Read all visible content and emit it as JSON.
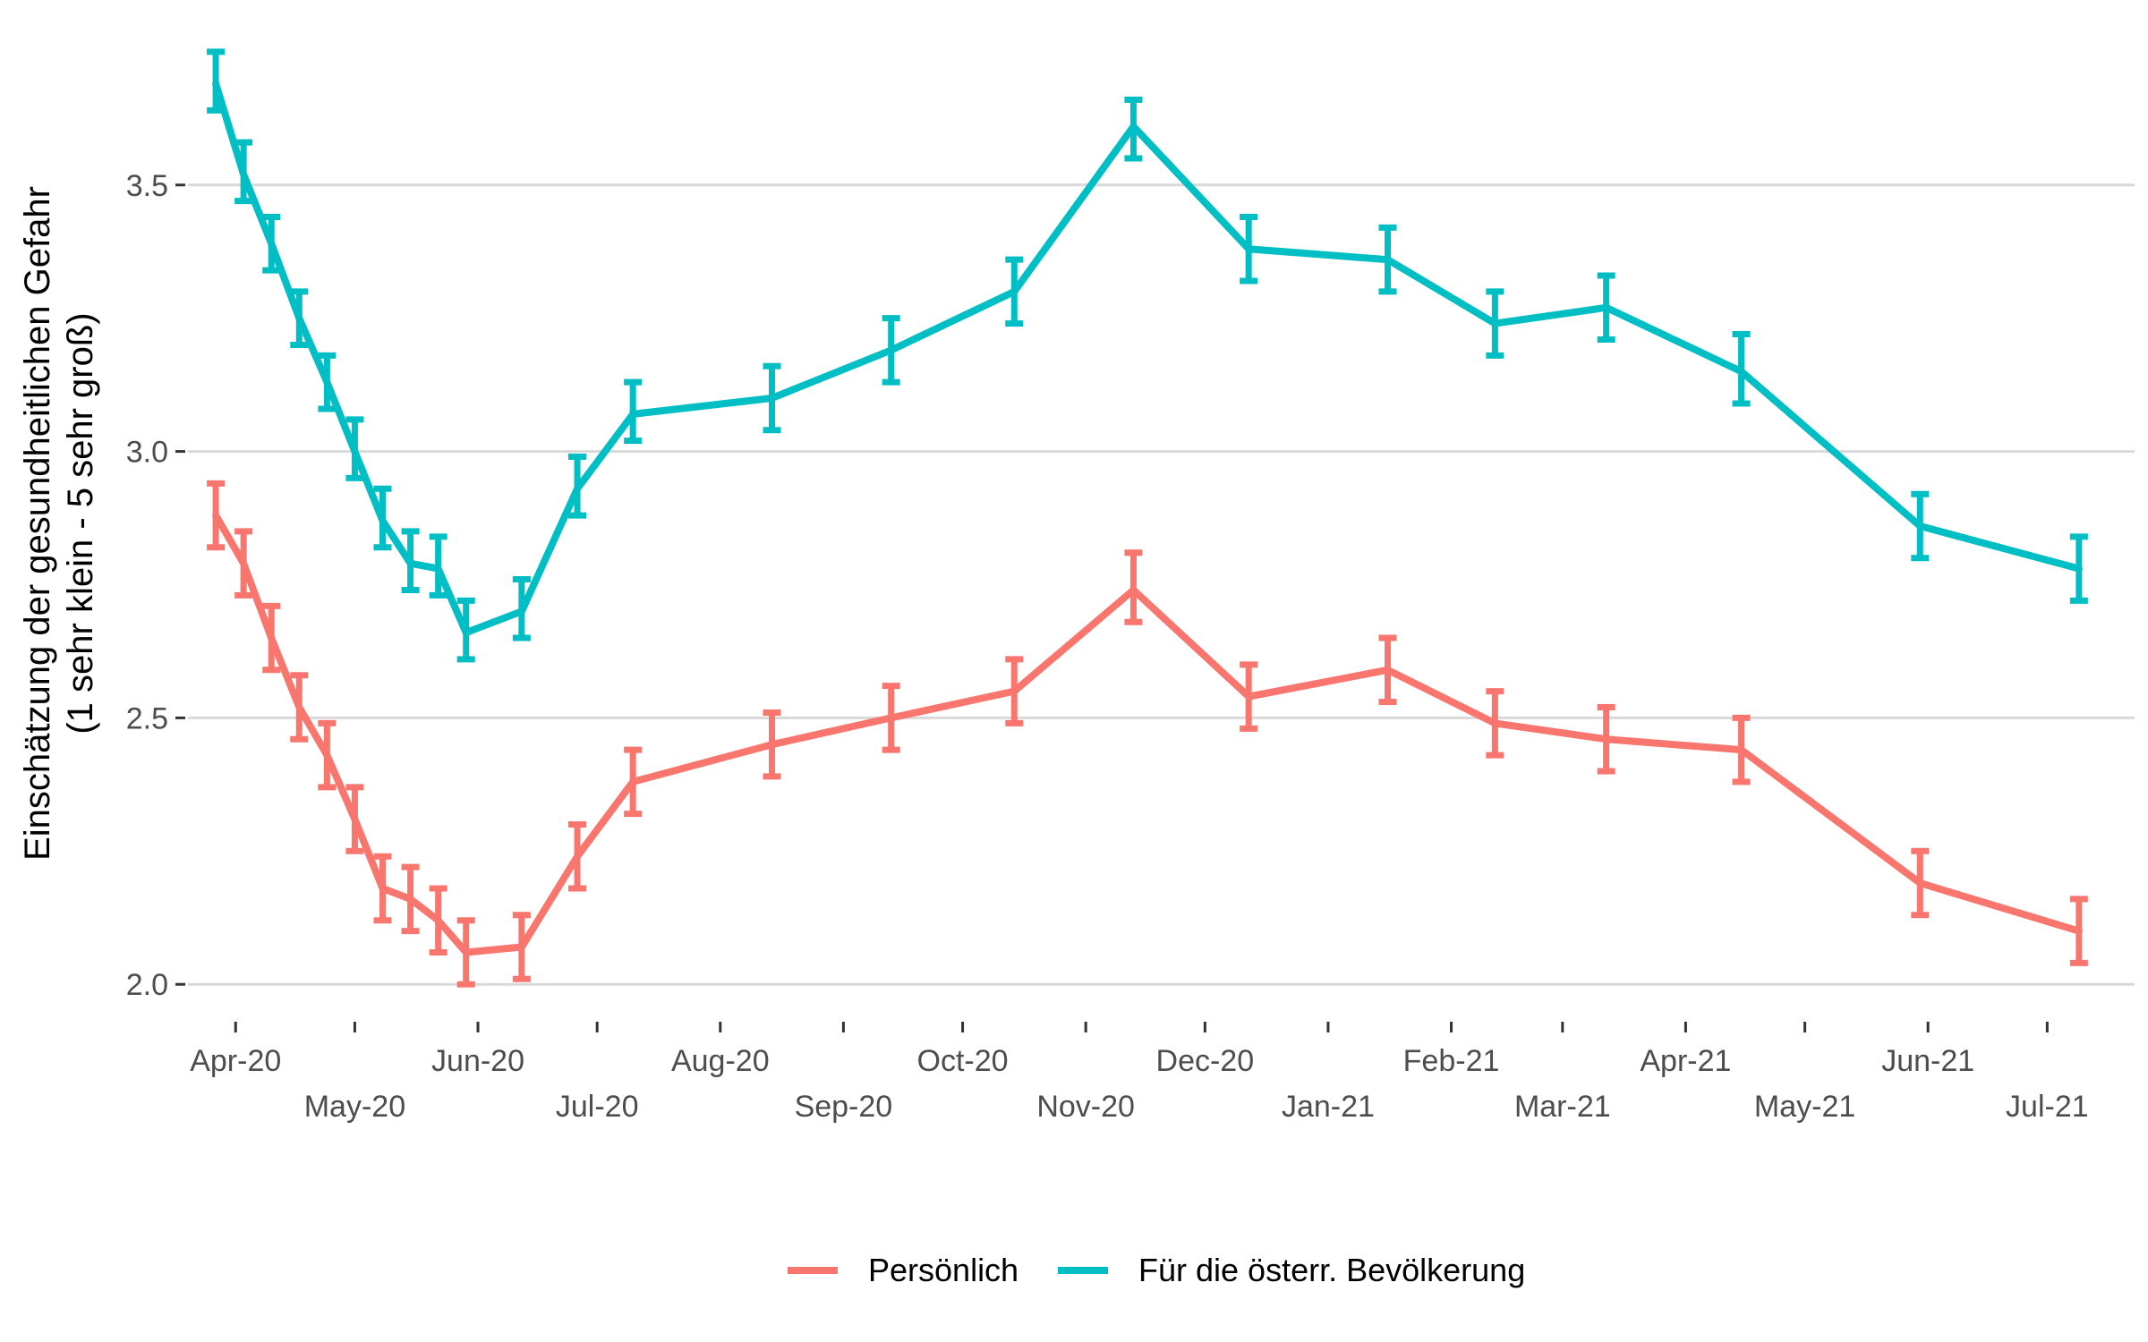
{
  "chart_data": {
    "type": "line",
    "title": "",
    "xlabel": "",
    "ylabel_lines": [
      "Einschätzung der gesundheitlichen Gefahr",
      "(1 sehr klein - 5 sehr groß)"
    ],
    "ylim": [
      1.95,
      3.78
    ],
    "yticks": [
      2.0,
      2.5,
      3.0,
      3.5
    ],
    "ytick_labels": [
      "2.0",
      "2.5",
      "3.0",
      "3.5"
    ],
    "xlim": [
      "2020-03-20",
      "2021-07-23"
    ],
    "xticks": [
      {
        "date": "2020-04-01",
        "label": "Apr-20",
        "row": 0
      },
      {
        "date": "2020-05-01",
        "label": "May-20",
        "row": 1
      },
      {
        "date": "2020-06-01",
        "label": "Jun-20",
        "row": 0
      },
      {
        "date": "2020-07-01",
        "label": "Jul-20",
        "row": 1
      },
      {
        "date": "2020-08-01",
        "label": "Aug-20",
        "row": 0
      },
      {
        "date": "2020-09-01",
        "label": "Sep-20",
        "row": 1
      },
      {
        "date": "2020-10-01",
        "label": "Oct-20",
        "row": 0
      },
      {
        "date": "2020-11-01",
        "label": "Nov-20",
        "row": 1
      },
      {
        "date": "2020-12-01",
        "label": "Dec-20",
        "row": 0
      },
      {
        "date": "2021-01-01",
        "label": "Jan-21",
        "row": 1
      },
      {
        "date": "2021-02-01",
        "label": "Feb-21",
        "row": 0
      },
      {
        "date": "2021-03-01",
        "label": "Mar-21",
        "row": 1
      },
      {
        "date": "2021-04-01",
        "label": "Apr-21",
        "row": 0
      },
      {
        "date": "2021-05-01",
        "label": "May-21",
        "row": 1
      },
      {
        "date": "2021-06-01",
        "label": "Jun-21",
        "row": 0
      },
      {
        "date": "2021-07-01",
        "label": "Jul-21",
        "row": 1
      }
    ],
    "grid": true,
    "legend_position": "bottom",
    "x": [
      "2020-03-27",
      "2020-04-03",
      "2020-04-10",
      "2020-04-17",
      "2020-04-24",
      "2020-05-01",
      "2020-05-08",
      "2020-05-15",
      "2020-05-22",
      "2020-05-29",
      "2020-06-12",
      "2020-06-26",
      "2020-07-10",
      "2020-08-14",
      "2020-09-13",
      "2020-10-14",
      "2020-11-13",
      "2020-12-12",
      "2021-01-16",
      "2021-02-12",
      "2021-03-12",
      "2021-04-15",
      "2021-05-30",
      "2021-07-09"
    ],
    "series": [
      {
        "name": "Persönlich",
        "color": "#F8766D",
        "values": [
          2.88,
          2.79,
          2.65,
          2.52,
          2.43,
          2.31,
          2.18,
          2.16,
          2.12,
          2.06,
          2.07,
          2.24,
          2.38,
          2.45,
          2.5,
          2.55,
          2.74,
          2.54,
          2.59,
          2.49,
          2.46,
          2.44,
          2.19,
          2.1
        ],
        "lower": [
          2.82,
          2.73,
          2.59,
          2.46,
          2.37,
          2.25,
          2.12,
          2.1,
          2.06,
          2.0,
          2.01,
          2.18,
          2.32,
          2.39,
          2.44,
          2.49,
          2.68,
          2.48,
          2.53,
          2.43,
          2.4,
          2.38,
          2.13,
          2.04
        ],
        "upper": [
          2.94,
          2.85,
          2.71,
          2.58,
          2.49,
          2.37,
          2.24,
          2.22,
          2.18,
          2.12,
          2.13,
          2.3,
          2.44,
          2.51,
          2.56,
          2.61,
          2.81,
          2.6,
          2.65,
          2.55,
          2.52,
          2.5,
          2.25,
          2.16
        ]
      },
      {
        "name": "Für die österr. Bevölkerung",
        "color": "#00BFC4",
        "values": [
          3.69,
          3.52,
          3.39,
          3.25,
          3.13,
          3.0,
          2.87,
          2.79,
          2.78,
          2.66,
          2.7,
          2.93,
          3.07,
          3.1,
          3.19,
          3.3,
          3.61,
          3.38,
          3.36,
          3.24,
          3.27,
          3.15,
          2.86,
          2.78
        ],
        "lower": [
          3.64,
          3.47,
          3.34,
          3.2,
          3.08,
          2.95,
          2.82,
          2.74,
          2.73,
          2.61,
          2.65,
          2.88,
          3.02,
          3.04,
          3.13,
          3.24,
          3.55,
          3.32,
          3.3,
          3.18,
          3.21,
          3.09,
          2.8,
          2.72
        ],
        "upper": [
          3.75,
          3.58,
          3.44,
          3.3,
          3.18,
          3.06,
          2.93,
          2.85,
          2.84,
          2.72,
          2.76,
          2.99,
          3.13,
          3.16,
          3.25,
          3.36,
          3.66,
          3.44,
          3.42,
          3.3,
          3.33,
          3.22,
          2.92,
          2.84
        ]
      }
    ]
  }
}
